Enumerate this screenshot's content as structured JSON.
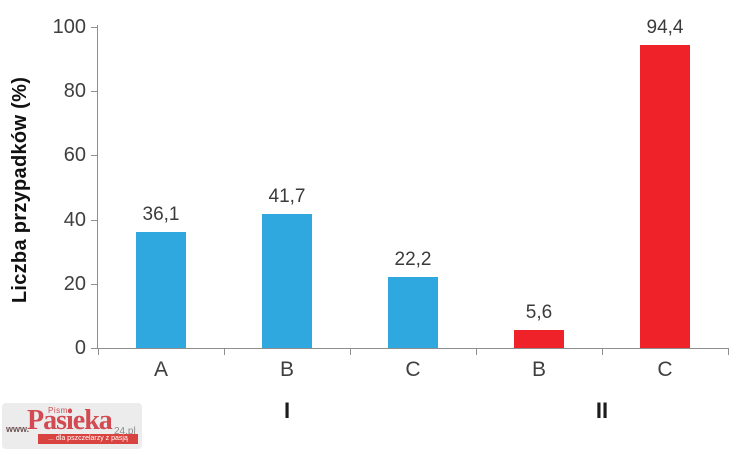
{
  "chart_data": {
    "type": "bar",
    "title": "",
    "ylabel": "Liczba przypadków (%)",
    "xlabel": "",
    "ylim": [
      0,
      100
    ],
    "yticks": [
      0,
      20,
      40,
      60,
      80,
      100
    ],
    "grid": false,
    "legend": "none",
    "categories": [
      "A",
      "B",
      "C",
      "B",
      "C"
    ],
    "values": [
      36.1,
      41.7,
      22.2,
      5.6,
      94.4
    ],
    "value_labels": [
      "36,1",
      "41,7",
      "22,2",
      "5,6",
      "94,4"
    ],
    "bar_colors": [
      "#2fa8e0",
      "#2fa8e0",
      "#2fa8e0",
      "#ee2228",
      "#ee2228"
    ],
    "groups": [
      {
        "label": "I",
        "start_slot": 0,
        "end_slot": 3
      },
      {
        "label": "II",
        "start_slot": 3,
        "end_slot": 5
      }
    ]
  },
  "colors": {
    "blue_series": "#2fa8e0",
    "red_series": "#ee2228",
    "axis": "#8e8e8e",
    "tick_text": "#3f3f3f",
    "background": "#ffffff"
  },
  "watermark": {
    "www": "www.",
    "pismo": "Pismo",
    "name": "Pasieka",
    "suffix": "24.pl",
    "tagline": "... dla pszczelarzy z pasją"
  }
}
